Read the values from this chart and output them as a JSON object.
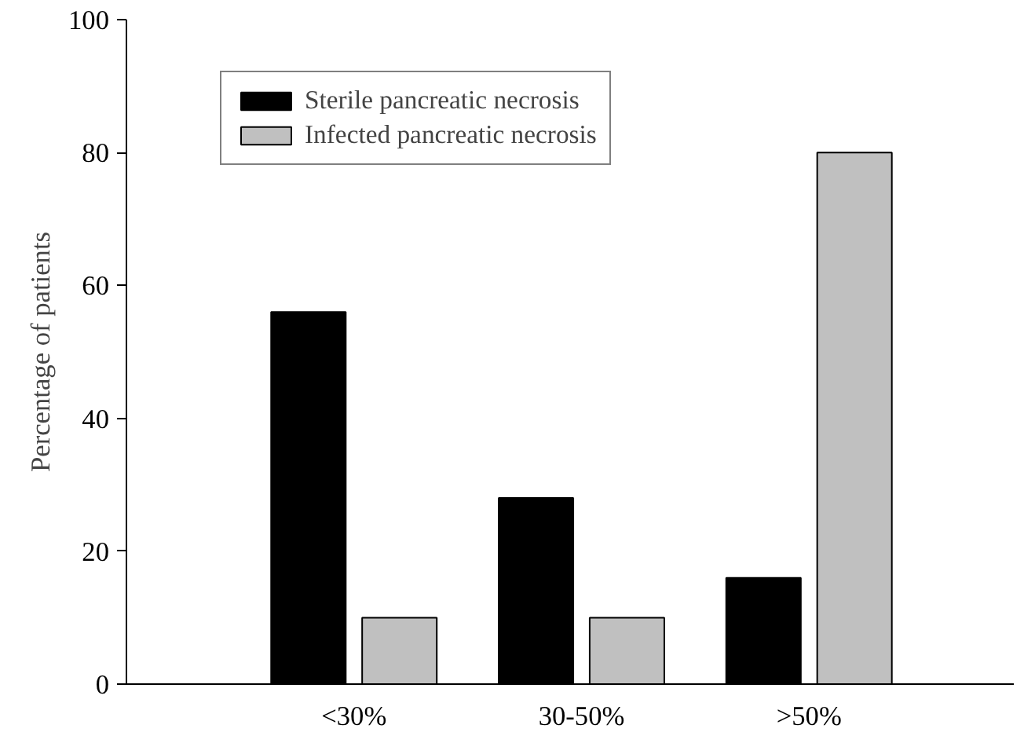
{
  "chart_data": {
    "type": "bar",
    "ylabel": "Percentage of patients",
    "categories": [
      "<30%",
      "30-50%",
      ">50%"
    ],
    "series": [
      {
        "name": "Sterile pancreatic necrosis",
        "color": "#000000",
        "values": [
          56,
          28,
          16
        ]
      },
      {
        "name": "Infected pancreatic necrosis",
        "color": "#c0c0c0",
        "values": [
          10,
          10,
          80
        ]
      }
    ],
    "ylim": [
      0,
      100
    ],
    "yticks": [
      0,
      20,
      40,
      60,
      80,
      100
    ],
    "grid": false,
    "legend": "top left"
  }
}
